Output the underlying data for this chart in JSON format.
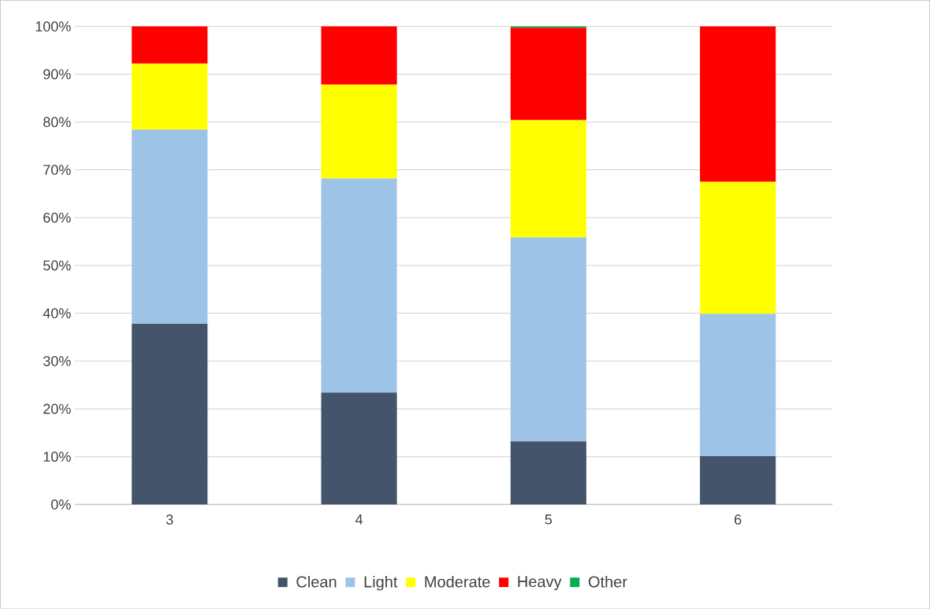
{
  "chart_data": {
    "type": "bar",
    "stacked": true,
    "categories": [
      "3",
      "4",
      "5",
      "6"
    ],
    "series": [
      {
        "name": "Clean",
        "color": "#44546a",
        "values": [
          37.8,
          23.4,
          13.2,
          10.1
        ]
      },
      {
        "name": "Light",
        "color": "#9dc3e6",
        "values": [
          40.6,
          44.8,
          42.7,
          29.8
        ]
      },
      {
        "name": "Moderate",
        "color": "#ffff00",
        "values": [
          13.8,
          19.6,
          24.5,
          27.6
        ]
      },
      {
        "name": "Heavy",
        "color": "#ff0000",
        "values": [
          7.8,
          12.2,
          19.3,
          32.5
        ]
      },
      {
        "name": "Other",
        "color": "#00b050",
        "values": [
          0,
          0,
          0.3,
          0
        ]
      }
    ],
    "ylim": [
      0,
      100
    ],
    "yticks": [
      {
        "value": 0,
        "label": "0%"
      },
      {
        "value": 10,
        "label": "10%"
      },
      {
        "value": 20,
        "label": "20%"
      },
      {
        "value": 30,
        "label": "30%"
      },
      {
        "value": 40,
        "label": "40%"
      },
      {
        "value": 50,
        "label": "50%"
      },
      {
        "value": 60,
        "label": "60%"
      },
      {
        "value": 70,
        "label": "70%"
      },
      {
        "value": 80,
        "label": "80%"
      },
      {
        "value": 90,
        "label": "90%"
      },
      {
        "value": 100,
        "label": "100%"
      }
    ],
    "grid": "y",
    "legend": "bottom"
  }
}
